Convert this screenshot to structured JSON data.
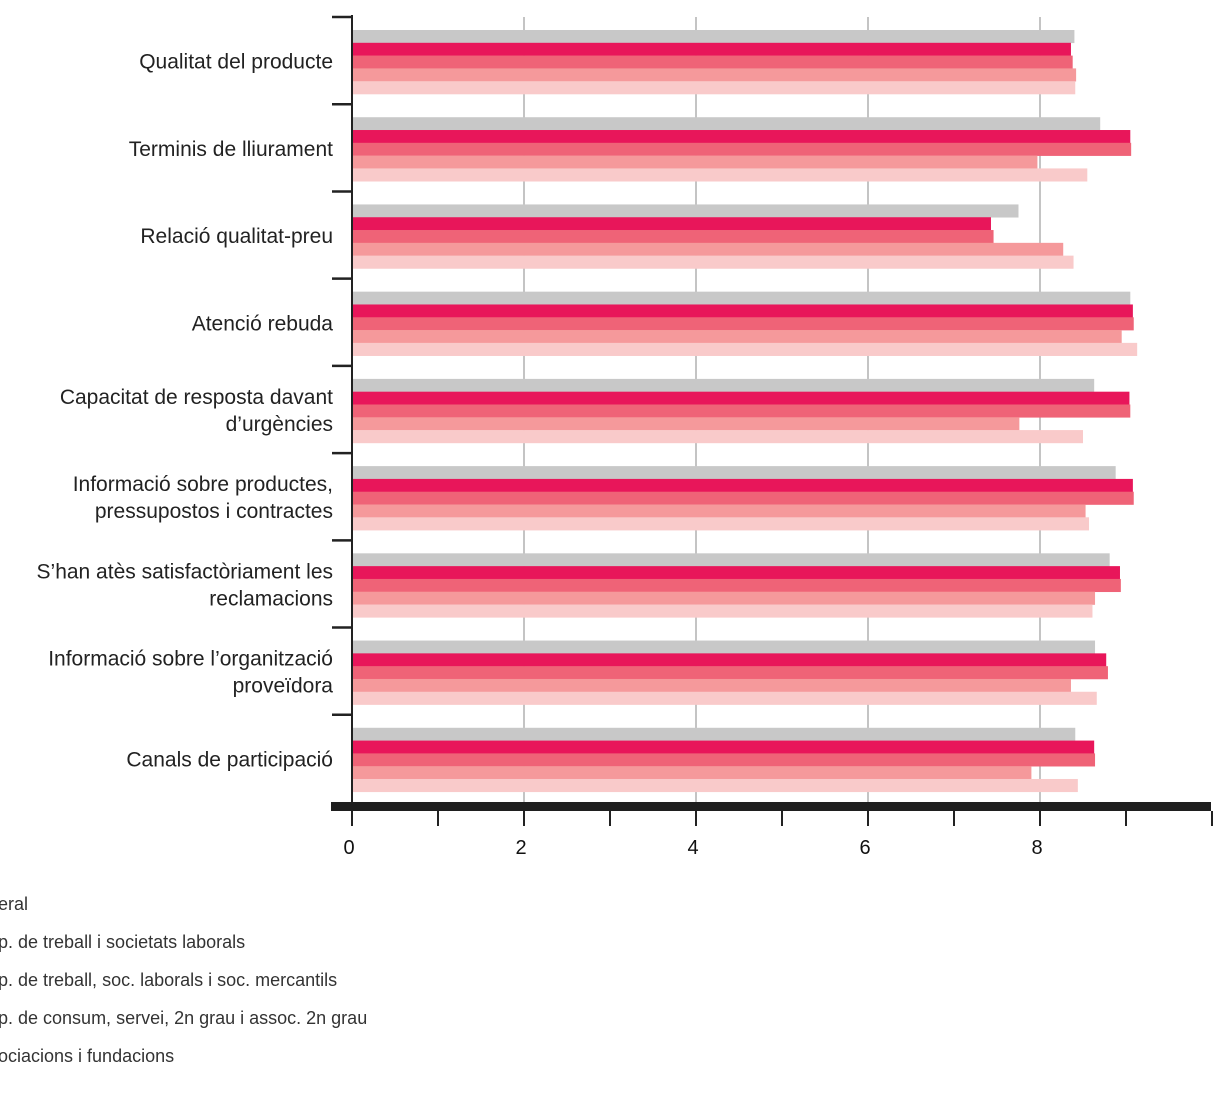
{
  "chart_data": {
    "type": "bar",
    "orientation": "horizontal",
    "title": "",
    "xlabel": "",
    "ylabel": "",
    "xlim": [
      0,
      10
    ],
    "x_ticks": [
      0,
      2,
      4,
      6,
      8
    ],
    "grid": true,
    "legend_position": "bottom-left",
    "categories": [
      [
        "Qualitat del producte"
      ],
      [
        "Terminis de lliurament"
      ],
      [
        "Relació qualitat-preu"
      ],
      [
        "Atenció rebuda"
      ],
      [
        "Capacitat de resposta davant",
        "d’urgències"
      ],
      [
        "Informació sobre productes,",
        "pressupostos i contractes"
      ],
      [
        "S’han atès satisfactòriament les",
        "reclamacions"
      ],
      [
        "Informació sobre l’organització",
        "proveïdora"
      ],
      [
        "Canals de participació"
      ]
    ],
    "series": [
      {
        "name": "eral",
        "color": "#c8c8c8",
        "values": [
          8.4,
          8.7,
          7.75,
          9.05,
          8.63,
          8.88,
          8.81,
          8.64,
          8.41
        ]
      },
      {
        "name": "p. de treball i societats laborals",
        "color": "#e8165a",
        "values": [
          8.36,
          9.05,
          7.43,
          9.08,
          9.04,
          9.08,
          8.93,
          8.77,
          8.63
        ]
      },
      {
        "name": "p. de treball, soc. laborals i soc. mercantils",
        "color": "#ef6377",
        "values": [
          8.38,
          9.06,
          7.46,
          9.09,
          9.05,
          9.09,
          8.94,
          8.79,
          8.64
        ]
      },
      {
        "name": "p. de consum, servei, 2n grau i assoc. 2n grau",
        "color": "#f5999b",
        "values": [
          8.42,
          7.97,
          8.27,
          8.95,
          7.76,
          8.53,
          8.64,
          8.36,
          7.9
        ]
      },
      {
        "name": "ociacions i fundacions",
        "color": "#f9caca",
        "values": [
          8.41,
          8.55,
          8.39,
          9.13,
          8.5,
          8.57,
          8.61,
          8.66,
          8.44
        ]
      }
    ]
  }
}
